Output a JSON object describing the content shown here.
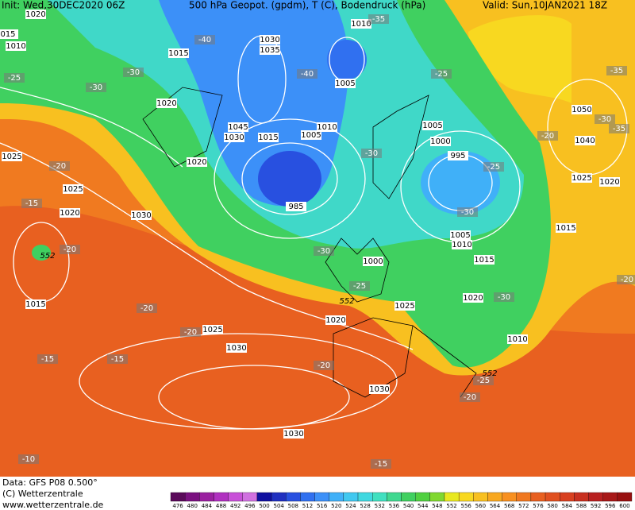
{
  "header": {
    "init": "Init: Wed,30DEC2020 06Z",
    "title": "500 hPa Geopot. (gpdm), T (C), Bodendruck (hPa)",
    "valid": "Valid: Sun,10JAN2021 18Z"
  },
  "footer": {
    "data": "Data: GFS P08 0.500°",
    "copyright": "(C) Wetterzentrale",
    "url": "www.wetterzentrale.de"
  },
  "pressure_labels": [
    "1020",
    "015",
    "1010",
    "1015",
    "1030",
    "1035",
    "1010",
    "1005",
    "1020",
    "1045",
    "1030",
    "1015",
    "1005",
    "1010",
    "1005",
    "1000",
    "995",
    "1020",
    "1025",
    "1025",
    "1020",
    "1030",
    "985",
    "1005",
    "1010",
    "1000",
    "1015",
    "1020",
    "1025",
    "1020",
    "1025",
    "1030",
    "1010",
    "1015",
    "1050",
    "1040",
    "1025",
    "1020",
    "1030",
    "1030",
    "1015"
  ],
  "temperature_labels": [
    "-35",
    "-40",
    "-25",
    "-30",
    "-30",
    "-40",
    "-25",
    "-35",
    "-30",
    "-35",
    "-20",
    "-25",
    "-30",
    "-20",
    "-15",
    "-20",
    "-30",
    "-30",
    "-25",
    "-30",
    "-20",
    "-20",
    "-15",
    "-15",
    "-20",
    "-25",
    "-20",
    "-10",
    "-15",
    "-20"
  ],
  "height_labels": [
    "552",
    "552",
    "552"
  ],
  "colorbar": {
    "values": [
      476,
      480,
      484,
      488,
      492,
      496,
      500,
      504,
      508,
      512,
      516,
      520,
      524,
      528,
      532,
      536,
      540,
      544,
      548,
      552,
      556,
      560,
      564,
      568,
      572,
      576,
      580,
      584,
      588,
      592,
      596,
      600
    ],
    "colors": [
      "#5a0a5a",
      "#7a1080",
      "#9a20a0",
      "#b030c0",
      "#c850d8",
      "#d070e0",
      "#1010a0",
      "#2030c0",
      "#2850e0",
      "#3070f0",
      "#3c90f8",
      "#40b0f8",
      "#40c8f0",
      "#40d8e0",
      "#40e0c0",
      "#40d890",
      "#40d060",
      "#50d040",
      "#80d830",
      "#e8e820",
      "#f8d820",
      "#f8c020",
      "#f8a820",
      "#f89020",
      "#f07820",
      "#e86020",
      "#e05020",
      "#d84020",
      "#c83020",
      "#b82020",
      "#a81818",
      "#981010"
    ]
  }
}
